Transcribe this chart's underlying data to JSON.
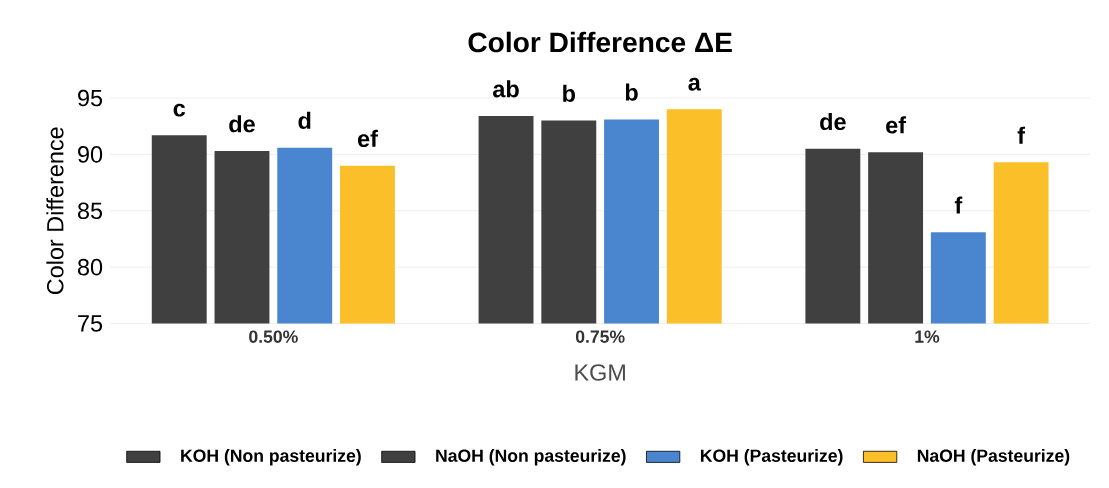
{
  "chart_data": {
    "type": "bar",
    "title": "Color Difference ΔE",
    "xlabel": "KGM",
    "ylabel": "Color Difference",
    "categories": [
      "0.50%",
      "0.75%",
      "1%"
    ],
    "series": [
      {
        "name": "KOH (Non pasteurize)",
        "color": "#404040",
        "values": [
          91.7,
          93.4,
          90.5
        ],
        "value_labels": [
          "c",
          "ab",
          "de"
        ]
      },
      {
        "name": "NaOH  (Non pasteurize)",
        "color": "#404040",
        "values": [
          90.3,
          93.0,
          90.2
        ],
        "value_labels": [
          "de",
          "b",
          "ef"
        ]
      },
      {
        "name": "KOH (Pasteurize)",
        "color": "#4a86d0",
        "values": [
          90.6,
          93.1,
          83.1
        ],
        "value_labels": [
          "d",
          "b",
          "f"
        ]
      },
      {
        "name": "NaOH (Pasteurize)",
        "color": "#fbbf2a",
        "values": [
          89.0,
          94.0,
          89.3
        ],
        "value_labels": [
          "ef",
          "a",
          "f"
        ]
      }
    ],
    "ylim": [
      75,
      95
    ],
    "yticks": [
      75,
      80,
      85,
      90,
      95
    ],
    "grid": "y",
    "legend": "bottom"
  }
}
